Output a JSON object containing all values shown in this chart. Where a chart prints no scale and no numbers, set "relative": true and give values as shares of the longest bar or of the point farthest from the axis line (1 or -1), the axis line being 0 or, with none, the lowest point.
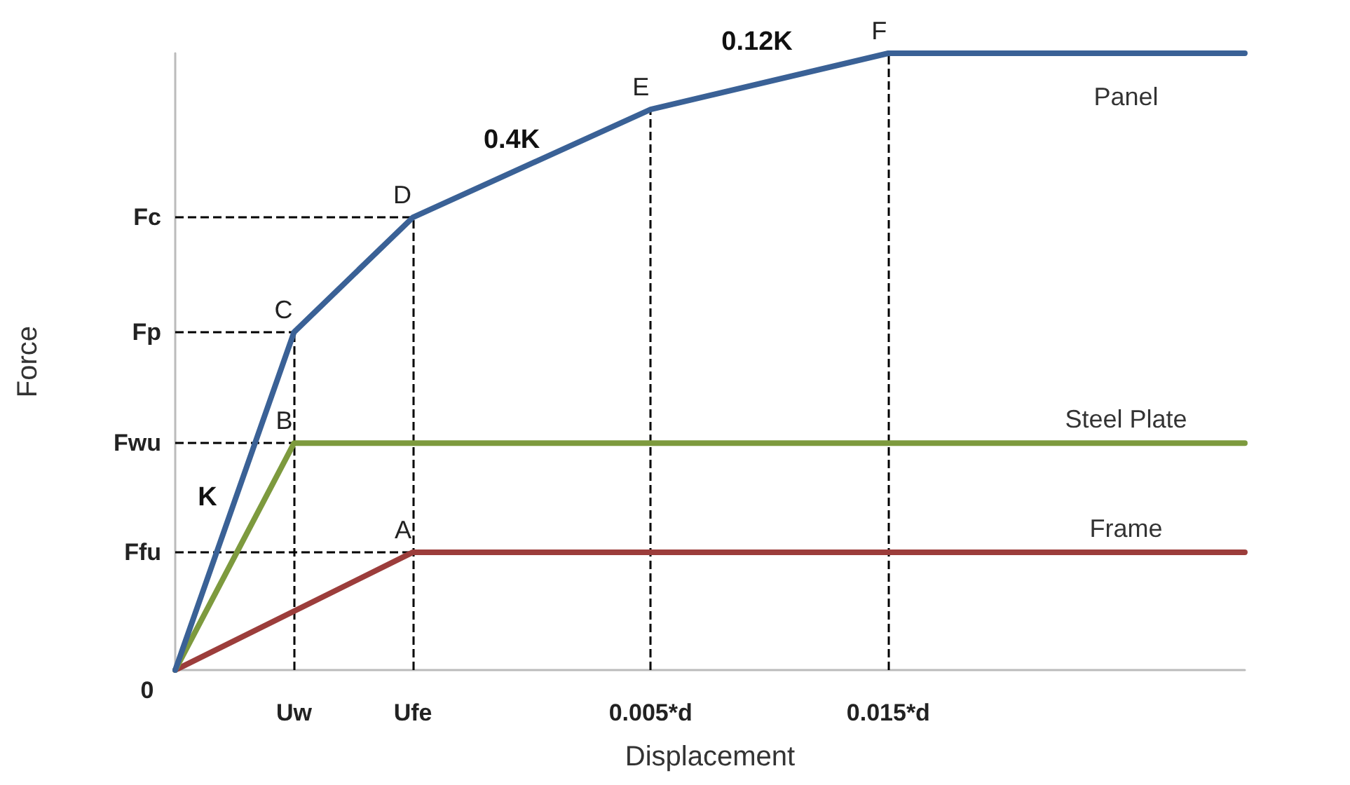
{
  "chart_data": {
    "type": "line",
    "relative": true,
    "xlabel": "Displacement",
    "ylabel": "Force",
    "categories": [
      "0",
      "Uw",
      "Ufe",
      null,
      "0.005*d",
      null,
      "0.015*d",
      null,
      null,
      null
    ],
    "series": [
      {
        "name": "Panel",
        "color": "#3a6196",
        "values": [
          0,
          0.548,
          0.734,
          null,
          0.909,
          null,
          1,
          null,
          null,
          1
        ]
      },
      {
        "name": "Steel Plate",
        "color": "#7d9a3e",
        "values": [
          0,
          0.368,
          0.368,
          0.368,
          0.368,
          0.368,
          0.368,
          0.368,
          0.368,
          0.368
        ]
      },
      {
        "name": "Frame",
        "color": "#9c3d3b",
        "values": [
          0,
          null,
          0.191,
          0.191,
          0.191,
          0.191,
          0.191,
          0.191,
          0.191,
          0.191
        ]
      }
    ],
    "ref_lines": [
      {
        "axis": "y",
        "value": 0.734,
        "label": "Fc",
        "line_style": "dashed",
        "color": "#000000"
      },
      {
        "axis": "y",
        "value": 0.548,
        "label": "Fp",
        "line_style": "dashed",
        "color": "#000000"
      },
      {
        "axis": "y",
        "value": 0.368,
        "label": "Fwu",
        "line_style": "dashed",
        "color": "#000000"
      },
      {
        "axis": "y",
        "value": 0.191,
        "label": "Ffu",
        "line_style": "dashed",
        "color": "#000000"
      },
      {
        "axis": "x",
        "value": "Uw",
        "line_style": "dashed",
        "color": "#000000"
      },
      {
        "axis": "x",
        "value": "Ufe",
        "line_style": "dashed",
        "color": "#000000"
      },
      {
        "axis": "x",
        "value": "0.005*d",
        "line_style": "dashed",
        "color": "#000000"
      },
      {
        "axis": "x",
        "value": "0.015*d",
        "line_style": "dashed",
        "color": "#000000"
      }
    ],
    "annotations": [
      {
        "text": "A",
        "x": "Ufe",
        "y": 0.191
      },
      {
        "text": "B",
        "x": "Uw",
        "y": 0.368
      },
      {
        "text": "C",
        "x": "Uw",
        "y": 0.548
      },
      {
        "text": "D",
        "x": "Ufe",
        "y": 0.734
      },
      {
        "text": "E",
        "x": "0.005*d",
        "y": 0.909
      },
      {
        "text": "F",
        "x": "0.015*d",
        "y": 1
      },
      "K",
      "0.4K",
      "0.12K"
    ],
    "legend": false,
    "grid": false,
    "marker": "none",
    "line_style": "solid"
  }
}
